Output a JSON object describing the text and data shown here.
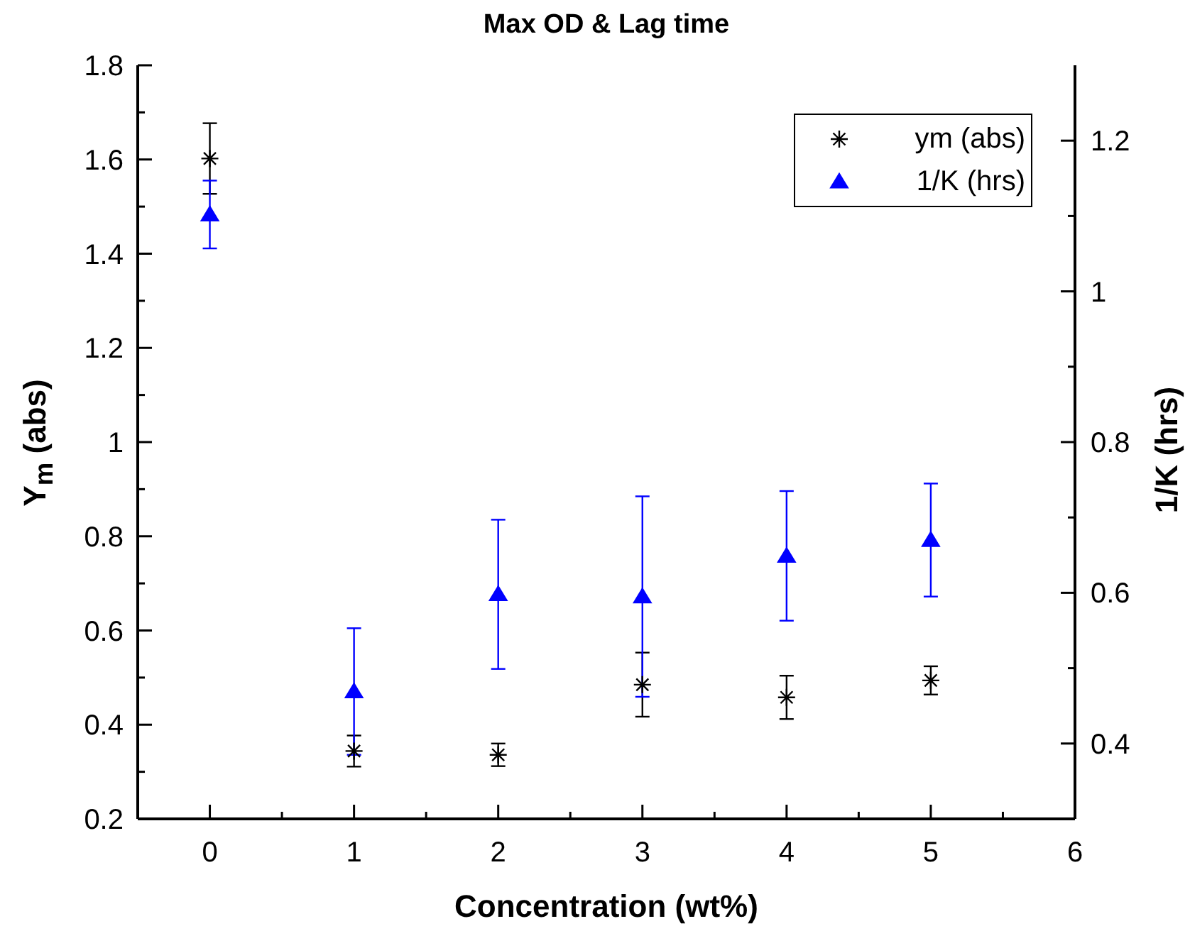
{
  "chart_data": {
    "type": "scatter",
    "title": "Max OD & Lag time",
    "xlabel": "Concentration (wt%)",
    "ylabel": "Y$_{m}$ (abs)",
    "y2label": "1/K (hrs)",
    "x": [
      0,
      1,
      2,
      3,
      4,
      5
    ],
    "series": [
      {
        "name": "ym (abs)",
        "color": "#000000",
        "marker": "cross",
        "values": [
          1.602,
          0.344,
          0.336,
          0.485,
          0.458,
          0.494
        ],
        "errors": [
          0.075,
          0.033,
          0.024,
          0.068,
          0.046,
          0.03
        ]
      },
      {
        "name": "1/K (hrs)",
        "color": "#0000ff",
        "marker": "triangle",
        "axis": "y2",
        "values": [
          1.102,
          0.469,
          0.598,
          0.595,
          0.649,
          0.67
        ],
        "errors": [
          0.045,
          0.084,
          0.099,
          0.133,
          0.086,
          0.075
        ]
      }
    ],
    "xlim": [
      -0.5,
      6
    ],
    "xticks": [
      0,
      {
        "value": 0.5,
        "label": null
      },
      1,
      {
        "value": 1.5,
        "label": null
      },
      2,
      {
        "value": 2.5,
        "label": null
      },
      3,
      {
        "value": 3.5,
        "label": null
      },
      4,
      {
        "value": 4.5,
        "label": null
      },
      5,
      {
        "value": 5.5,
        "label": null
      },
      6
    ],
    "ylim": [
      0.2,
      1.8
    ],
    "yticks": [
      0.2,
      {
        "value": 0.3,
        "label": null
      },
      0.4,
      {
        "value": 0.5,
        "label": null
      },
      0.6,
      {
        "value": 0.7,
        "label": null
      },
      0.8,
      {
        "value": 0.9,
        "label": null
      },
      1,
      {
        "value": 1.1,
        "label": null
      },
      1.2,
      {
        "value": 1.3,
        "label": null
      },
      1.4,
      {
        "value": 1.5,
        "label": null
      },
      1.6,
      {
        "value": 1.7,
        "label": null
      },
      1.8
    ],
    "y2lim": [
      0.3,
      1.3
    ],
    "y2ticks": [
      0.4,
      {
        "value": 0.5,
        "label": null
      },
      0.6,
      {
        "value": 0.7,
        "label": null
      },
      0.8,
      {
        "value": 0.9,
        "label": null
      },
      1,
      {
        "value": 1.1,
        "label": null
      },
      1.2
    ],
    "legend": "top right"
  }
}
